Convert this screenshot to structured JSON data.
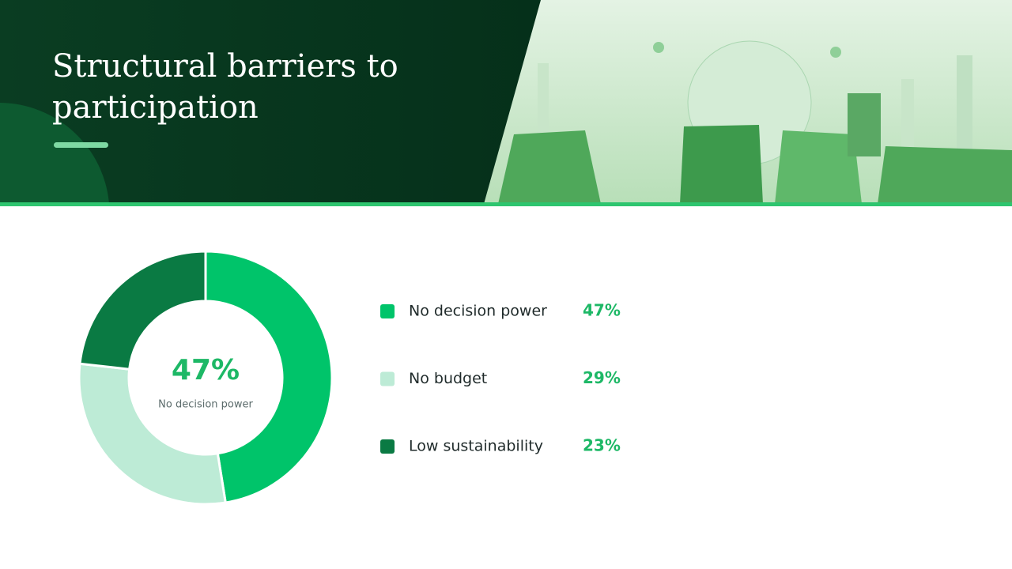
{
  "chart_data": {
    "type": "donut",
    "title": "Structural barriers to participation",
    "categories": [
      "No decision power",
      "No budget",
      "Low sustainability"
    ],
    "values": [
      47,
      29,
      23
    ],
    "value_labels": [
      "47%",
      "29%",
      "23%"
    ],
    "colors": [
      "#00c46a",
      "#bdebd6",
      "#0a7a43"
    ],
    "center_value": "47%",
    "center_caption": "No decision power"
  }
}
